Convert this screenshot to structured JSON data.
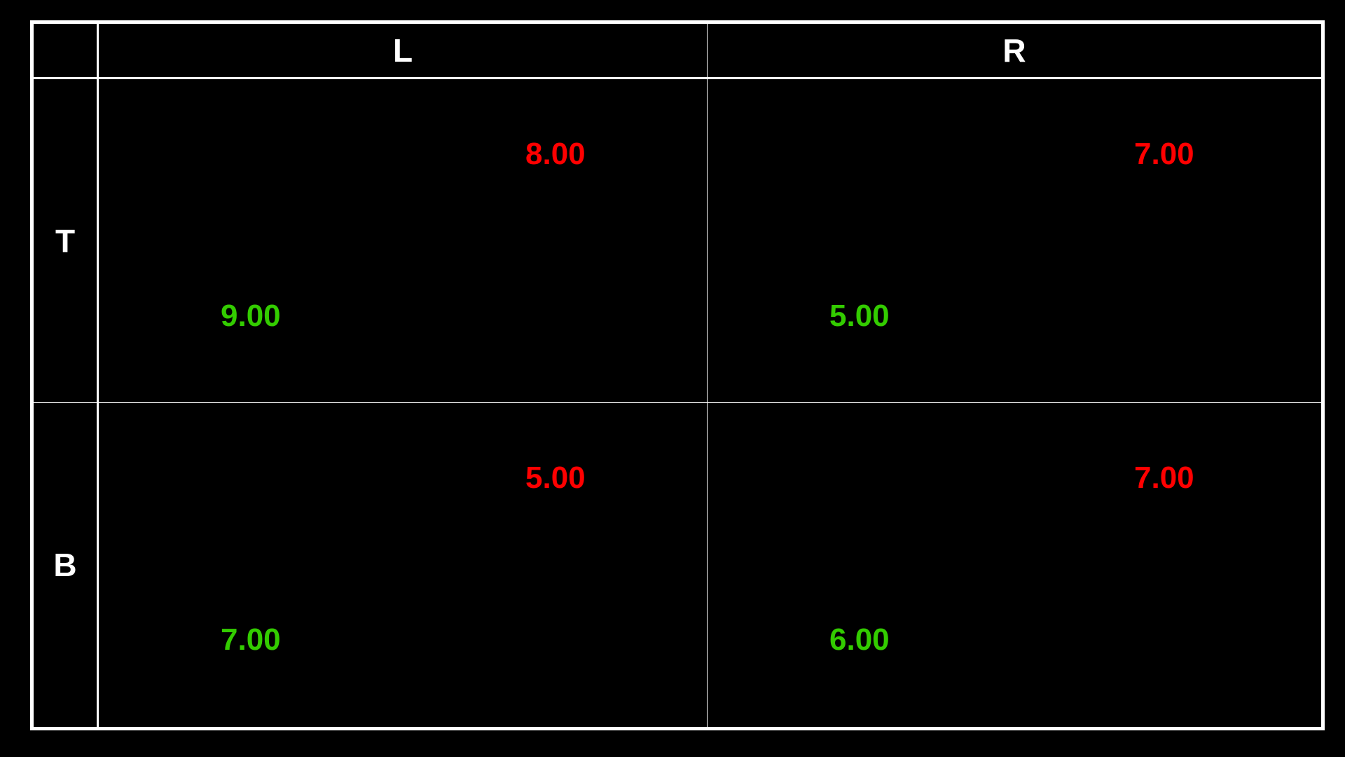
{
  "columns": [
    "L",
    "R"
  ],
  "rows": [
    "T",
    "B"
  ],
  "colors": {
    "row_player_payoff": "#33cc00",
    "column_player_payoff": "#ff0000",
    "grid_lines": "#ffffff",
    "background": "#000000"
  },
  "payoffs": {
    "T_L": {
      "row_player": "9.00",
      "column_player": "8.00"
    },
    "T_R": {
      "row_player": "5.00",
      "column_player": "7.00"
    },
    "B_L": {
      "row_player": "7.00",
      "column_player": "5.00"
    },
    "B_R": {
      "row_player": "6.00",
      "column_player": "7.00"
    }
  }
}
